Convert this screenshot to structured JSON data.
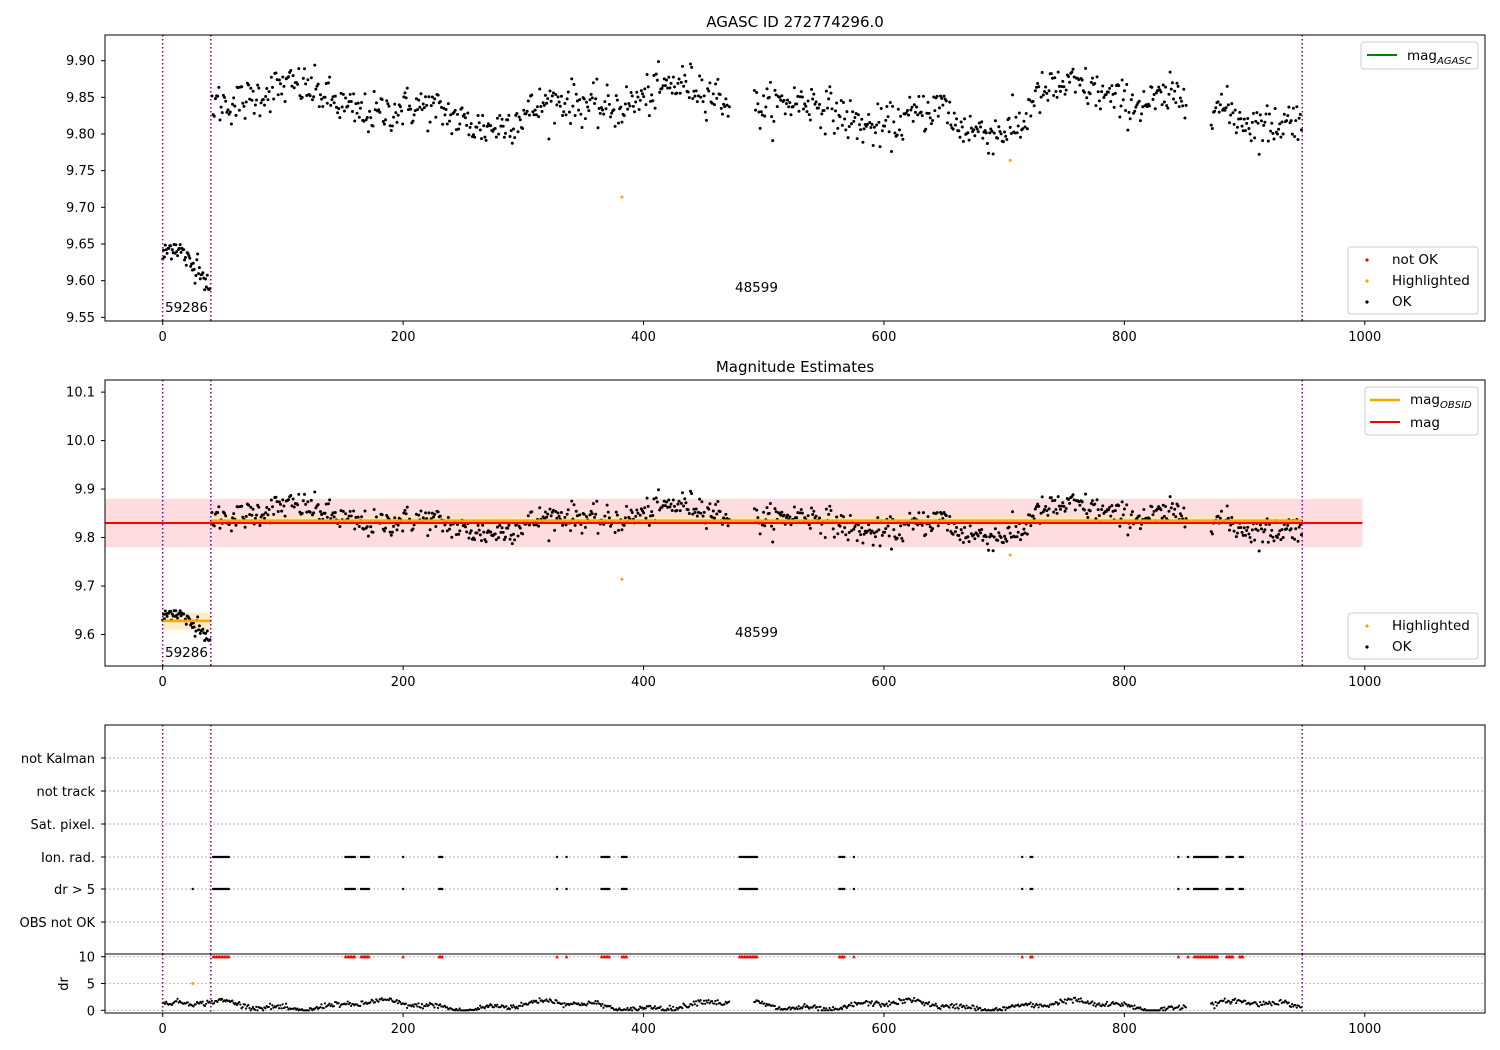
{
  "chart_data": [
    {
      "type": "scatter",
      "title": "AGASC ID 272774296.0",
      "xlim": [
        -48,
        1100
      ],
      "ylim": [
        9.545,
        9.935
      ],
      "xticks": [
        0,
        200,
        400,
        600,
        800,
        1000
      ],
      "yticks": [
        9.55,
        9.6,
        9.65,
        9.7,
        9.75,
        9.8,
        9.85,
        9.9
      ],
      "ytick_labels": [
        "9.55",
        "9.60",
        "9.65",
        "9.70",
        "9.75",
        "9.80",
        "9.85",
        "9.90"
      ],
      "obsid_boundaries": [
        0,
        40,
        948
      ],
      "obsid_annotations": [
        {
          "label": "59286",
          "x": 2
        },
        {
          "label": "48599",
          "x": 475
        }
      ],
      "legend_top": [
        {
          "label": "mag",
          "sub": "AGASC",
          "color": "#008000",
          "kind": "line"
        }
      ],
      "legend_bottom": [
        {
          "label": "not OK",
          "color": "#ff0000",
          "kind": "dot"
        },
        {
          "label": "Highlighted",
          "color": "#ffa500",
          "kind": "dot"
        },
        {
          "label": "OK",
          "color": "#000000",
          "kind": "dot"
        }
      ],
      "highlighted_points": [
        {
          "x": 382,
          "y": 9.714
        },
        {
          "x": 705,
          "y": 9.764
        }
      ],
      "segments": [
        {
          "x_range": [
            0,
            40
          ],
          "level": 9.632,
          "spread": 0.018,
          "drift": -0.03
        },
        {
          "x_range": [
            40,
            948
          ],
          "level": 9.838,
          "spread": 0.022,
          "drift": 0
        }
      ]
    },
    {
      "type": "scatter",
      "title": "Magnitude Estimates",
      "xlim": [
        -48,
        1100
      ],
      "ylim": [
        9.535,
        10.125
      ],
      "xticks": [
        0,
        200,
        400,
        600,
        800,
        1000
      ],
      "yticks": [
        9.6,
        9.7,
        9.8,
        9.9,
        10.0,
        10.1
      ],
      "ytick_labels": [
        "9.6",
        "9.7",
        "9.8",
        "9.9",
        "10.0",
        "10.1"
      ],
      "obsid_boundaries": [
        0,
        40,
        948
      ],
      "obsid_annotations": [
        {
          "label": "59286",
          "x": 2
        },
        {
          "label": "48599",
          "x": 475
        }
      ],
      "mag": 9.83,
      "mag_band": [
        9.78,
        9.88
      ],
      "mag_x_range": [
        -48,
        998
      ],
      "mag_obsid": [
        {
          "x_range": [
            0,
            40
          ],
          "value": 9.628,
          "band": [
            9.61,
            9.645
          ]
        },
        {
          "x_range": [
            40,
            948
          ],
          "value": 9.835,
          "band": [
            9.825,
            9.845
          ]
        }
      ],
      "legend_top": [
        {
          "label": "mag",
          "sub": "OBSID",
          "color": "#ffa500",
          "kind": "line"
        },
        {
          "label": "mag",
          "sub": "",
          "color": "#ff0000",
          "kind": "line"
        }
      ],
      "legend_bottom": [
        {
          "label": "Highlighted",
          "color": "#ffa500",
          "kind": "dot"
        },
        {
          "label": "OK",
          "color": "#000000",
          "kind": "dot"
        }
      ],
      "highlighted_points": [
        {
          "x": 382,
          "y": 9.714
        },
        {
          "x": 705,
          "y": 9.764
        }
      ]
    },
    {
      "type": "scatter",
      "title": "",
      "xlim": [
        -48,
        1100
      ],
      "flag_categories": [
        "not Kalman",
        "not track",
        "Sat. pixel.",
        "Ion. rad.",
        "dr > 5",
        "OBS not OK"
      ],
      "obsid_boundaries": [
        0,
        40,
        948
      ],
      "flag_clusters": {
        "Ion. rad.": [
          [
            42,
            55
          ],
          [
            152,
            160
          ],
          [
            165,
            172
          ],
          [
            200,
            200
          ],
          [
            230,
            233
          ],
          [
            328,
            328
          ],
          [
            336,
            336
          ],
          [
            365,
            372
          ],
          [
            382,
            386
          ],
          [
            480,
            495
          ],
          [
            563,
            567
          ],
          [
            575,
            575
          ],
          [
            715,
            715
          ],
          [
            722,
            724
          ],
          [
            845,
            845
          ],
          [
            853,
            853
          ],
          [
            858,
            878
          ],
          [
            885,
            891
          ],
          [
            896,
            899
          ]
        ],
        "dr > 5": [
          [
            25,
            25
          ],
          [
            42,
            55
          ],
          [
            152,
            160
          ],
          [
            165,
            172
          ],
          [
            200,
            200
          ],
          [
            230,
            233
          ],
          [
            328,
            328
          ],
          [
            336,
            336
          ],
          [
            365,
            372
          ],
          [
            382,
            386
          ],
          [
            480,
            495
          ],
          [
            563,
            567
          ],
          [
            575,
            575
          ],
          [
            715,
            715
          ],
          [
            722,
            724
          ],
          [
            845,
            845
          ],
          [
            853,
            853
          ],
          [
            858,
            878
          ],
          [
            885,
            891
          ],
          [
            896,
            899
          ]
        ]
      },
      "dr_panel": {
        "ylabel": "dr",
        "yticks": [
          0,
          5,
          10
        ],
        "ylim": [
          -0.5,
          10.5
        ],
        "clip_value": 10,
        "highlighted_points": [
          {
            "x": 25,
            "y": 5
          }
        ]
      }
    }
  ],
  "colors": {
    "ok": "#000000",
    "not_ok": "#ff0000",
    "highlighted": "#ffa500",
    "mag": "#ff0000",
    "mag_band": "#ffc0c6",
    "mag_obsid": "#ffa500",
    "mag_obsid_band": "#ffe6b8",
    "agasc": "#008000",
    "boundary": "#800080",
    "grid": "#b0b0b0"
  }
}
